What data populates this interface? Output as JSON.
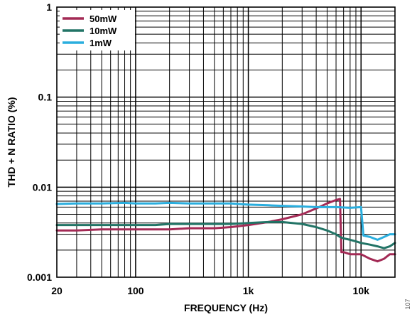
{
  "chart_data": {
    "type": "line",
    "title": "",
    "xlabel": "FREQUENCY (Hz)",
    "ylabel": "THD + N RATIO (%)",
    "x_scale": "log",
    "y_scale": "log",
    "xlim": [
      20,
      20000
    ],
    "ylim": [
      0.001,
      1
    ],
    "grid": true,
    "legend_position": "top-left",
    "x_ticks": [
      {
        "value": 20,
        "label": "20"
      },
      {
        "value": 100,
        "label": "100"
      },
      {
        "value": 1000,
        "label": "1k"
      },
      {
        "value": 10000,
        "label": "10k"
      }
    ],
    "y_ticks": [
      {
        "value": 0.001,
        "label": "0.001"
      },
      {
        "value": 0.01,
        "label": "0.01"
      },
      {
        "value": 0.1,
        "label": "0.1"
      },
      {
        "value": 1,
        "label": "1"
      }
    ],
    "figure_number": "107",
    "series": [
      {
        "name": "50mW",
        "color": "#a32a55",
        "x": [
          20,
          30,
          50,
          80,
          100,
          150,
          200,
          300,
          500,
          700,
          1000,
          1500,
          2000,
          3000,
          4000,
          5000,
          6000,
          6500,
          6700,
          7000,
          8000,
          9000,
          10000,
          12000,
          14000,
          16000,
          18000,
          20000
        ],
        "y": [
          0.0033,
          0.0033,
          0.0034,
          0.0034,
          0.0034,
          0.0034,
          0.0034,
          0.0035,
          0.0035,
          0.0036,
          0.0038,
          0.0041,
          0.0044,
          0.005,
          0.0058,
          0.0066,
          0.0072,
          0.0074,
          0.0019,
          0.0019,
          0.0018,
          0.0018,
          0.0018,
          0.0016,
          0.0015,
          0.0016,
          0.0018,
          0.0018
        ]
      },
      {
        "name": "10mW",
        "color": "#227466",
        "x": [
          20,
          30,
          50,
          80,
          100,
          150,
          200,
          300,
          500,
          700,
          1000,
          1500,
          2000,
          3000,
          4000,
          5000,
          6000,
          6500,
          7000,
          8000,
          9000,
          10000,
          12000,
          14000,
          16000,
          18000,
          20000
        ],
        "y": [
          0.0038,
          0.0038,
          0.0038,
          0.0038,
          0.0038,
          0.0038,
          0.0039,
          0.0039,
          0.0039,
          0.0039,
          0.004,
          0.0041,
          0.0041,
          0.0039,
          0.0036,
          0.0033,
          0.003,
          0.0028,
          0.0027,
          0.0026,
          0.0025,
          0.0024,
          0.0023,
          0.0022,
          0.0021,
          0.0022,
          0.0024
        ]
      },
      {
        "name": "1mW",
        "color": "#2aaede",
        "x": [
          20,
          30,
          50,
          80,
          100,
          150,
          200,
          300,
          500,
          700,
          1000,
          1500,
          2000,
          3000,
          4000,
          5000,
          6000,
          8000,
          10000,
          10500,
          12000,
          14000,
          16000,
          18000,
          20000
        ],
        "y": [
          0.0065,
          0.0066,
          0.0066,
          0.0067,
          0.0066,
          0.0066,
          0.0067,
          0.0066,
          0.0066,
          0.0066,
          0.0064,
          0.0063,
          0.0062,
          0.0061,
          0.006,
          0.006,
          0.006,
          0.0059,
          0.006,
          0.0029,
          0.0028,
          0.0026,
          0.0028,
          0.003,
          0.003
        ]
      }
    ]
  }
}
